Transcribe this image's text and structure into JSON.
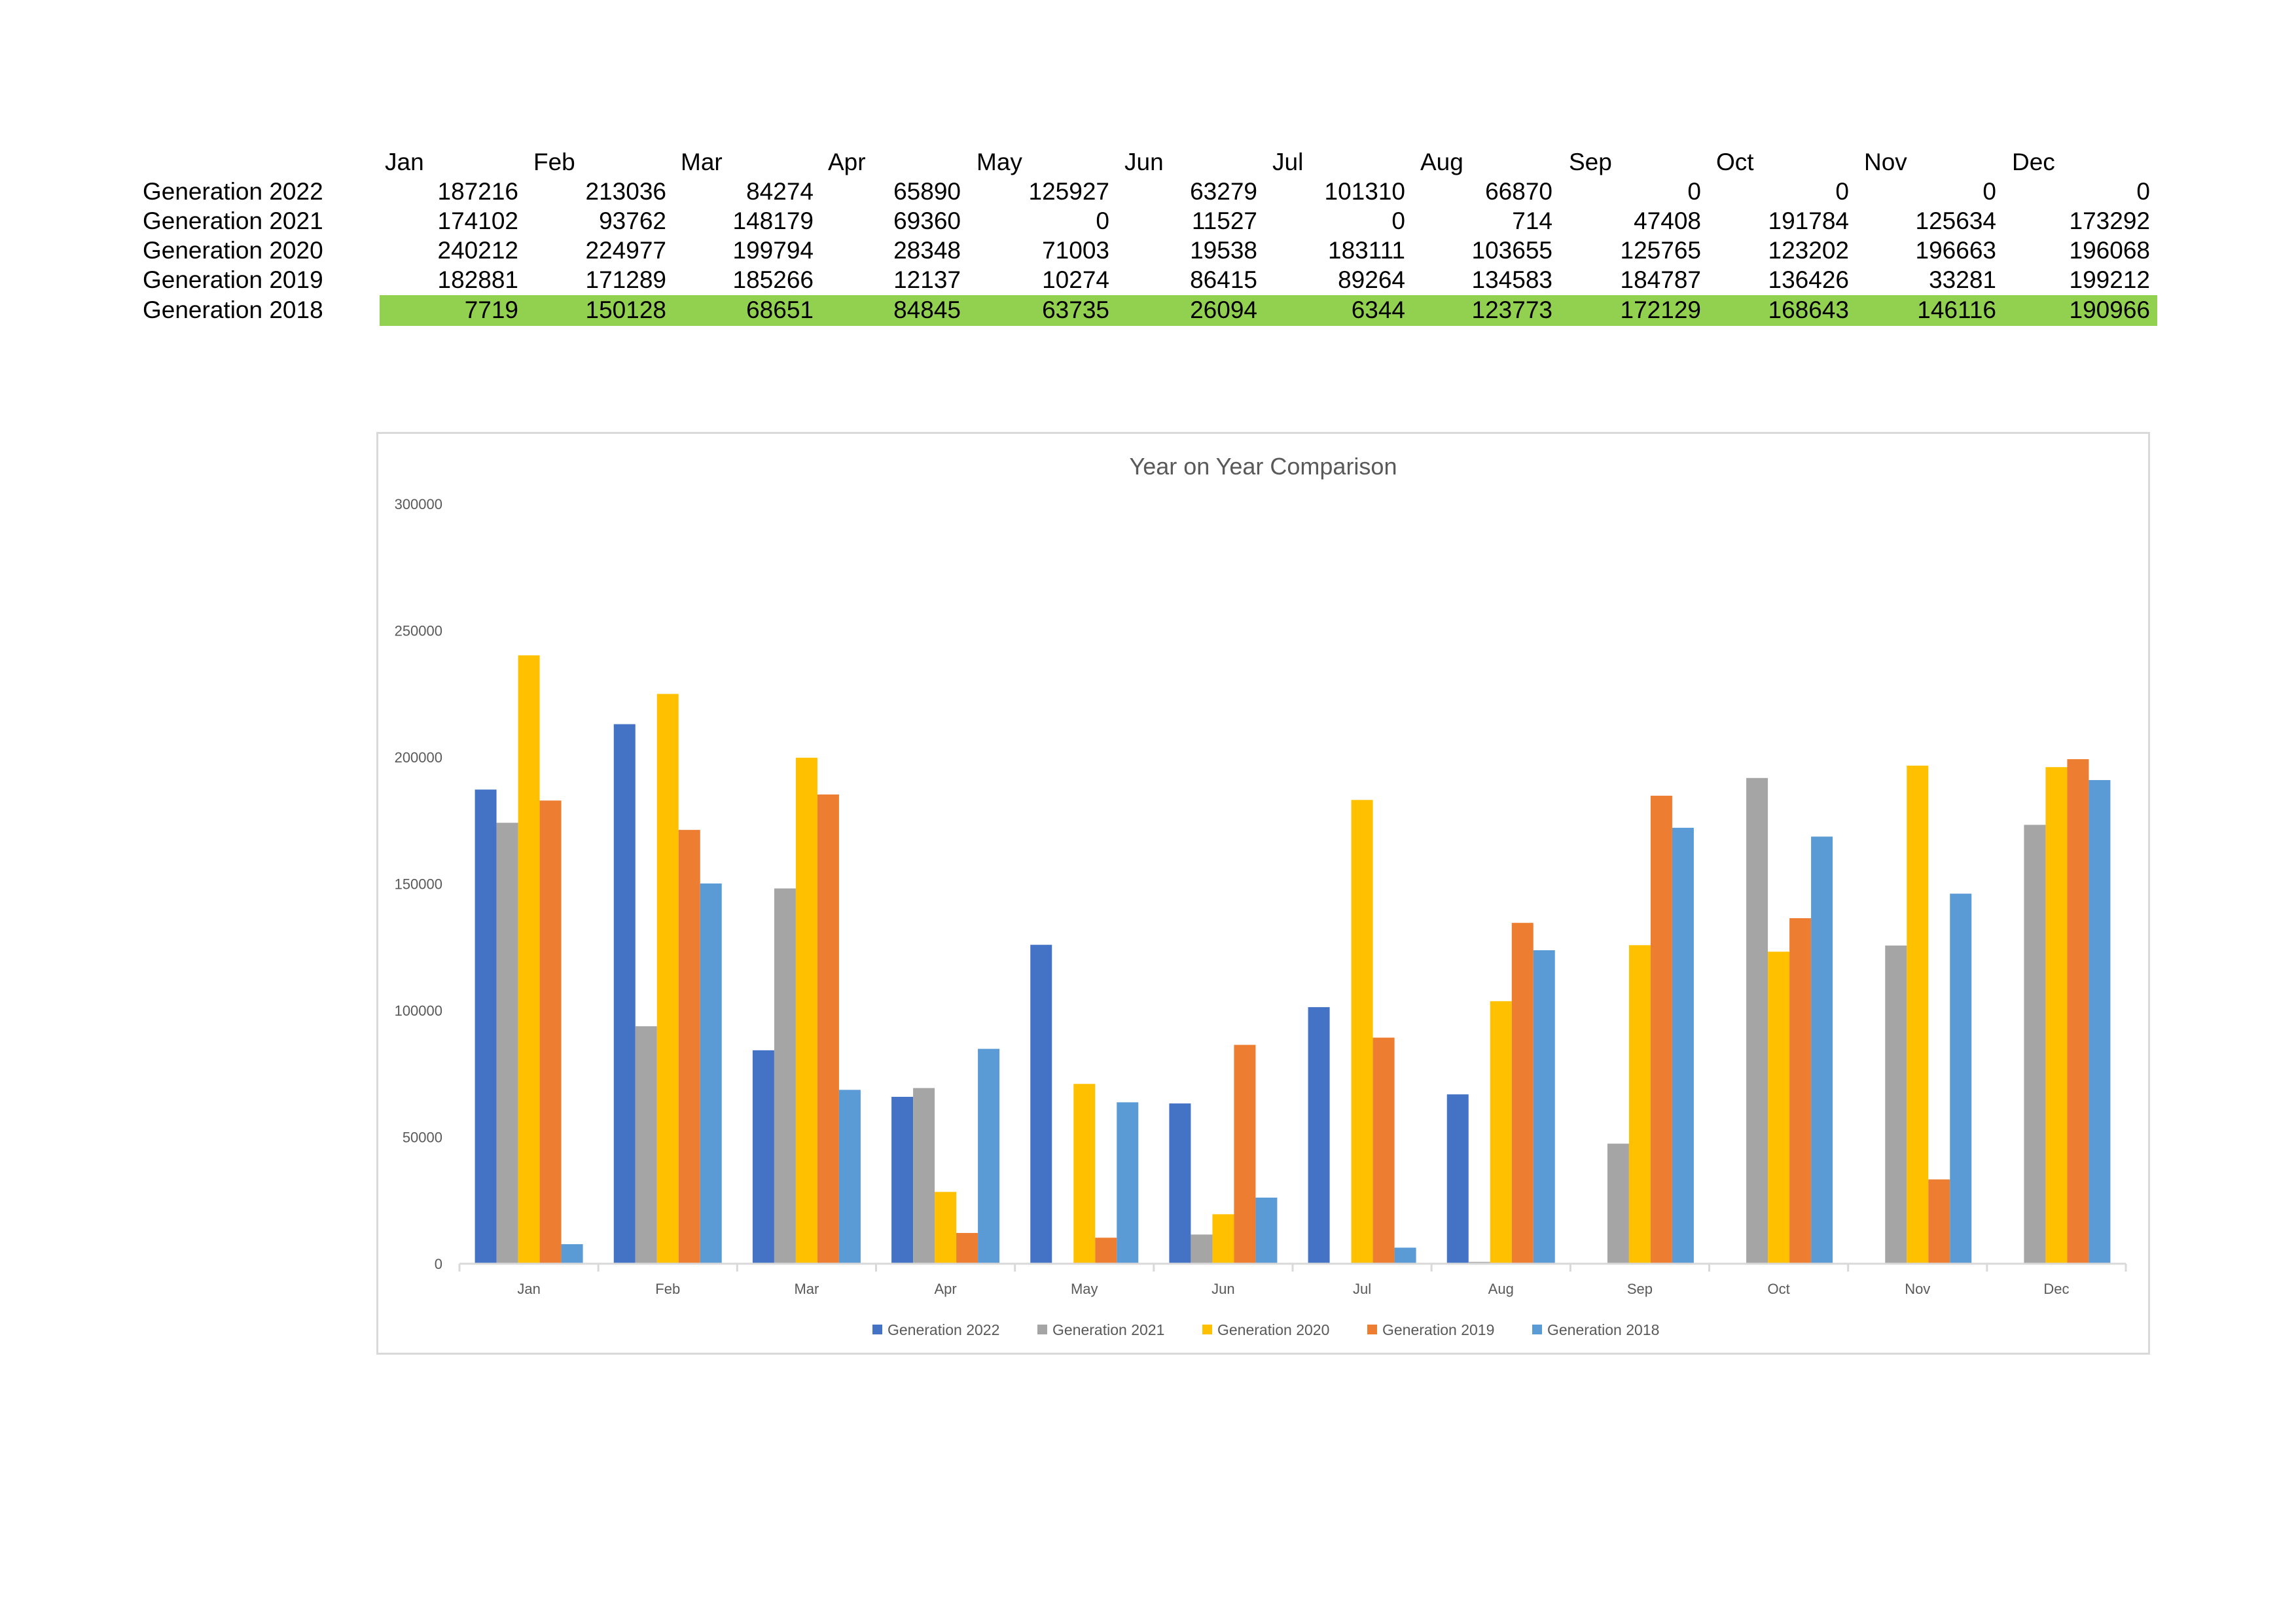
{
  "table": {
    "months": [
      "Jan",
      "Feb",
      "Mar",
      "Apr",
      "May",
      "Jun",
      "Jul",
      "Aug",
      "Sep",
      "Oct",
      "Nov",
      "Dec"
    ],
    "rows": [
      {
        "label": "Generation 2022",
        "values": [
          "187216",
          "213036",
          "84274",
          "65890",
          "125927",
          "63279",
          "101310",
          "66870",
          "0",
          "0",
          "0",
          "0"
        ]
      },
      {
        "label": "Generation 2021",
        "values": [
          "174102",
          "93762",
          "148179",
          "69360",
          "0",
          "11527",
          "0",
          "714",
          "47408",
          "191784",
          "125634",
          "173292"
        ]
      },
      {
        "label": "Generation 2020",
        "values": [
          "240212",
          "224977",
          "199794",
          "28348",
          "71003",
          "19538",
          "183111",
          "103655",
          "125765",
          "123202",
          "196663",
          "196068"
        ]
      },
      {
        "label": "Generation 2019",
        "values": [
          "182881",
          "171289",
          "185266",
          "12137",
          "10274",
          "86415",
          "89264",
          "134583",
          "184787",
          "136426",
          "33281",
          "199212"
        ]
      },
      {
        "label": "Generation 2018",
        "values": [
          "7719",
          "150128",
          "68651",
          "84845",
          "63735",
          "26094",
          "6344",
          "123773",
          "172129",
          "168643",
          "146116",
          "190966"
        ]
      }
    ],
    "highlight_color": "#92d050"
  },
  "chart_data": {
    "type": "bar",
    "title": "Year on Year Comparison",
    "categories": [
      "Jan",
      "Feb",
      "Mar",
      "Apr",
      "May",
      "Jun",
      "Jul",
      "Aug",
      "Sep",
      "Oct",
      "Nov",
      "Dec"
    ],
    "y_ticks": [
      "0",
      "50000",
      "100000",
      "150000",
      "200000",
      "250000",
      "300000"
    ],
    "ylim": [
      0,
      300000
    ],
    "grid": false,
    "legend_position": "bottom",
    "series": [
      {
        "name": "Generation 2022",
        "color": "#4472c4",
        "values": [
          187216,
          213036,
          84274,
          65890,
          125927,
          63279,
          101310,
          66870,
          0,
          0,
          0,
          0
        ]
      },
      {
        "name": "Generation 2021",
        "color": "#a5a5a5",
        "values": [
          174102,
          93762,
          148179,
          69360,
          0,
          11527,
          0,
          714,
          47408,
          191784,
          125634,
          173292
        ]
      },
      {
        "name": "Generation 2020",
        "color": "#ffc000",
        "values": [
          240212,
          224977,
          199794,
          28348,
          71003,
          19538,
          183111,
          103655,
          125765,
          123202,
          196663,
          196068
        ]
      },
      {
        "name": "Generation 2019",
        "color": "#ed7d31",
        "values": [
          182881,
          171289,
          185266,
          12137,
          10274,
          86415,
          89264,
          134583,
          184787,
          136426,
          33281,
          199212
        ]
      },
      {
        "name": "Generation 2018",
        "color": "#5b9bd5",
        "values": [
          7719,
          150128,
          68651,
          84845,
          63735,
          26094,
          6344,
          123773,
          172129,
          168643,
          146116,
          190966
        ]
      }
    ]
  }
}
